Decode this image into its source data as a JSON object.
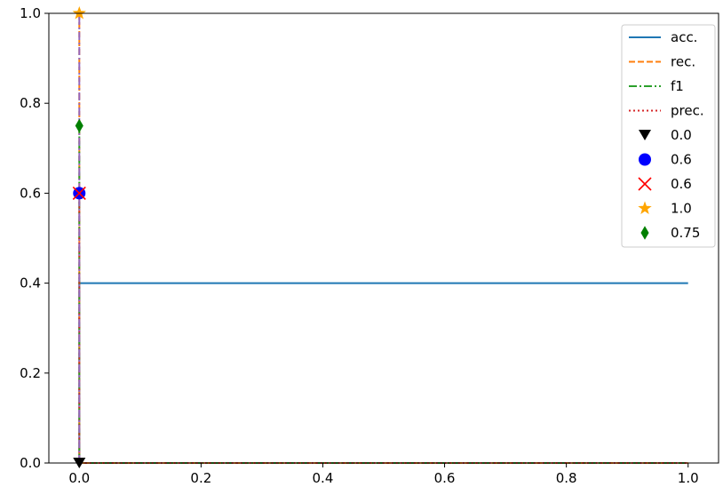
{
  "chart_data": {
    "type": "line",
    "title": "",
    "xlabel": "",
    "ylabel": "",
    "xlim": [
      -0.05,
      1.05
    ],
    "ylim": [
      0.0,
      1.0
    ],
    "xticks": [
      0.0,
      0.2,
      0.4,
      0.6,
      0.8,
      1.0
    ],
    "xtick_labels": [
      "0.0",
      "0.2",
      "0.4",
      "0.6",
      "0.8",
      "1.0"
    ],
    "yticks": [
      0.0,
      0.2,
      0.4,
      0.6,
      0.8,
      1.0
    ],
    "ytick_labels": [
      "0.0",
      "0.2",
      "0.4",
      "0.6",
      "0.8",
      "1.0"
    ],
    "grid": false,
    "legend_position": "top-right",
    "series": [
      {
        "name": "acc.",
        "style": "solid",
        "color": "#1f77b4",
        "points": [
          [
            0.0,
            0.0
          ],
          [
            0.0,
            0.4
          ],
          [
            1.0,
            0.4
          ]
        ]
      },
      {
        "name": "rec.",
        "style": "dashed",
        "color": "#ff7f0e",
        "points": [
          [
            0.0,
            1.0
          ],
          [
            0.0,
            0.0
          ],
          [
            1.0,
            0.0
          ]
        ]
      },
      {
        "name": "f1",
        "style": "dashdot",
        "color": "#2ca02c",
        "points": [
          [
            0.0,
            0.75
          ],
          [
            0.0,
            0.0
          ],
          [
            1.0,
            0.0
          ]
        ]
      },
      {
        "name": "prec.",
        "style": "dotted",
        "color": "#d62728",
        "points": [
          [
            0.0,
            0.6
          ],
          [
            0.0,
            0.0
          ],
          [
            1.0,
            0.0
          ]
        ]
      }
    ],
    "extra_line": {
      "style": "dashdot",
      "color": "#9467bd",
      "points": [
        [
          0.0,
          0.0
        ],
        [
          0.0,
          1.0
        ]
      ]
    },
    "markers": [
      {
        "label": "0.0",
        "shape": "triangle-down",
        "color": "#000000",
        "x": 0.0,
        "y": 0.0
      },
      {
        "label": "0.6",
        "shape": "circle",
        "color": "#0000ff",
        "x": 0.0,
        "y": 0.6
      },
      {
        "label": "0.6",
        "shape": "x",
        "color": "#ff0000",
        "x": 0.0,
        "y": 0.6
      },
      {
        "label": "1.0",
        "shape": "star",
        "color": "#ffa500",
        "x": 0.0,
        "y": 1.0
      },
      {
        "label": "0.75",
        "shape": "thin-diamond",
        "color": "#008000",
        "x": 0.0,
        "y": 0.75
      }
    ]
  }
}
